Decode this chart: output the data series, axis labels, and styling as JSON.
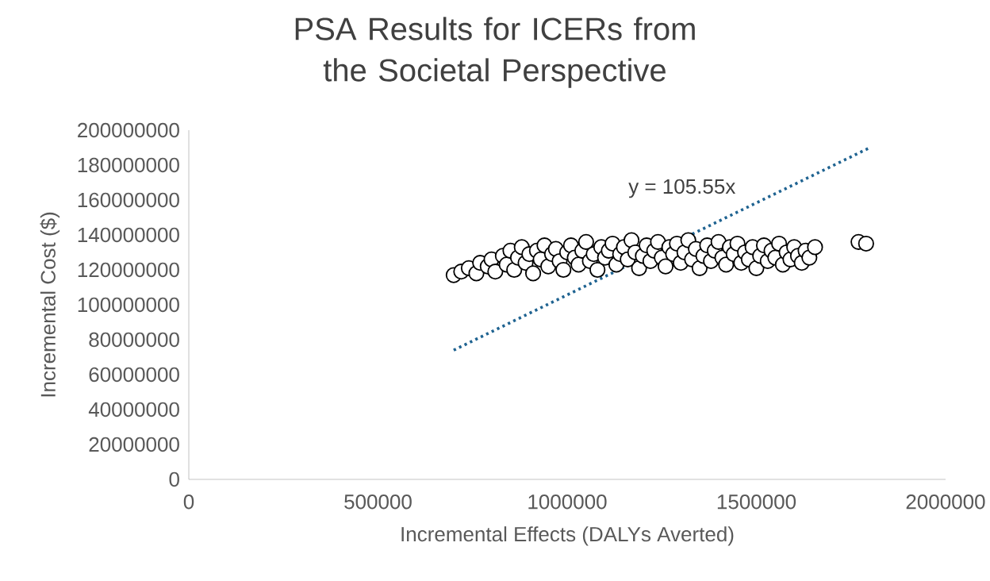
{
  "chart_data": {
    "type": "scatter",
    "title": "PSA Results for ICERs from the Societal Perspective",
    "xlabel": "Incremental Effects (DALYs Averted)",
    "ylabel": "Incremental Cost ($)",
    "xlim": [
      0,
      2000000
    ],
    "xticks": [
      0,
      500000,
      1000000,
      1500000,
      2000000
    ],
    "ylim": [
      0,
      200000000
    ],
    "yticks": [
      0,
      20000000,
      40000000,
      60000000,
      80000000,
      100000000,
      120000000,
      140000000,
      160000000,
      180000000,
      200000000
    ],
    "grid": false,
    "annotations": [
      "y = 105.55x"
    ],
    "series": [
      {
        "color": "#ffffff",
        "marker": "circle",
        "x": [
          700000,
          720000,
          740000,
          760000,
          770000,
          790000,
          800000,
          810000,
          830000,
          840000,
          850000,
          860000,
          870000,
          880000,
          890000,
          900000,
          910000,
          920000,
          930000,
          940000,
          950000,
          960000,
          970000,
          980000,
          990000,
          1000000,
          1010000,
          1020000,
          1030000,
          1040000,
          1050000,
          1060000,
          1070000,
          1080000,
          1090000,
          1100000,
          1110000,
          1120000,
          1130000,
          1140000,
          1150000,
          1160000,
          1170000,
          1180000,
          1190000,
          1200000,
          1210000,
          1220000,
          1230000,
          1240000,
          1250000,
          1260000,
          1270000,
          1280000,
          1290000,
          1300000,
          1310000,
          1320000,
          1330000,
          1340000,
          1350000,
          1360000,
          1370000,
          1380000,
          1390000,
          1400000,
          1410000,
          1420000,
          1430000,
          1440000,
          1450000,
          1460000,
          1470000,
          1480000,
          1490000,
          1500000,
          1510000,
          1520000,
          1530000,
          1540000,
          1550000,
          1560000,
          1570000,
          1580000,
          1590000,
          1600000,
          1610000,
          1620000,
          1630000,
          1640000,
          1655000,
          1770000,
          1790000
        ],
        "values": [
          117000000,
          119000000,
          121000000,
          118000000,
          124000000,
          122000000,
          126000000,
          119000000,
          128000000,
          123000000,
          131000000,
          120000000,
          127000000,
          133000000,
          124000000,
          129000000,
          118000000,
          131000000,
          126000000,
          134000000,
          122000000,
          129000000,
          132000000,
          125000000,
          120000000,
          130000000,
          134000000,
          127000000,
          123000000,
          131000000,
          136000000,
          125000000,
          129000000,
          120000000,
          133000000,
          127000000,
          131000000,
          135000000,
          123000000,
          129000000,
          133000000,
          126000000,
          137000000,
          130000000,
          121000000,
          128000000,
          134000000,
          125000000,
          131000000,
          136000000,
          127000000,
          122000000,
          133000000,
          129000000,
          135000000,
          124000000,
          130000000,
          137000000,
          126000000,
          132000000,
          121000000,
          128000000,
          134000000,
          125000000,
          131000000,
          136000000,
          127000000,
          123000000,
          133000000,
          129000000,
          135000000,
          124000000,
          130000000,
          126000000,
          133000000,
          121000000,
          128000000,
          134000000,
          125000000,
          131000000,
          127000000,
          135000000,
          123000000,
          130000000,
          126000000,
          133000000,
          128000000,
          124000000,
          131000000,
          127000000,
          133000000,
          136000000,
          135000000
        ]
      },
      {
        "type": "line",
        "color": "#1f6391",
        "line_style": "dotted",
        "marker": "none",
        "x": [
          700000,
          1800000
        ],
        "values": [
          74000000,
          190000000
        ]
      }
    ]
  }
}
